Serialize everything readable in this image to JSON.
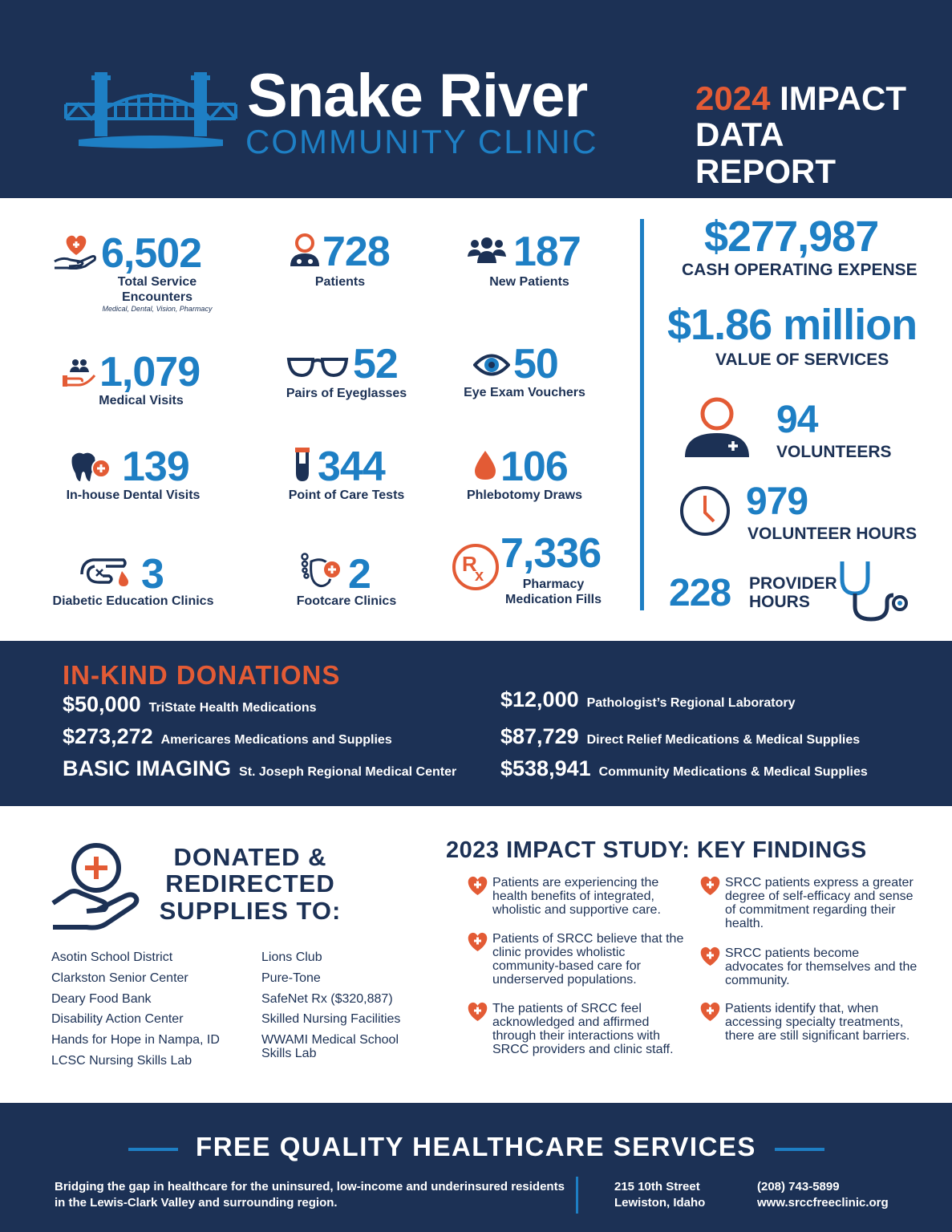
{
  "header": {
    "brand_title": "Snake River",
    "brand_subtitle": "COMMUNITY CLINIC",
    "report_year": "2024",
    "report_line1": " IMPACT",
    "report_line2": "DATA REPORT"
  },
  "stats": {
    "encounters": {
      "value": "6,502",
      "label_line1": "Total Service",
      "label_line2": "Encounters",
      "sub": "Medical, Dental, Vision, Pharmacy"
    },
    "patients": {
      "value": "728",
      "label": "Patients"
    },
    "new_patients": {
      "value": "187",
      "label": "New Patients"
    },
    "medical_visits": {
      "value": "1,079",
      "label": "Medical Visits"
    },
    "eyeglasses": {
      "value": "52",
      "label": "Pairs of Eyeglasses"
    },
    "eye_exams": {
      "value": "50",
      "label": "Eye Exam Vouchers"
    },
    "dental": {
      "value": "139",
      "label": "In-house Dental Visits"
    },
    "poc_tests": {
      "value": "344",
      "label": "Point of Care Tests"
    },
    "phlebotomy": {
      "value": "106",
      "label": "Phlebotomy Draws"
    },
    "diabetic": {
      "value": "3",
      "label": "Diabetic Education Clinics"
    },
    "footcare": {
      "value": "2",
      "label": "Footcare Clinics"
    },
    "pharmacy": {
      "value": "7,336",
      "label_line1": "Pharmacy",
      "label_line2": "Medication Fills"
    }
  },
  "right_stats": {
    "cash_expense": {
      "value": "$277,987",
      "label": "CASH OPERATING EXPENSE"
    },
    "services_value": {
      "value": "$1.86 million",
      "label": "VALUE OF SERVICES"
    },
    "volunteers": {
      "value": "94",
      "label": "VOLUNTEERS"
    },
    "volunteer_hours": {
      "value": "979",
      "label": "VOLUNTEER HOURS"
    },
    "provider_hours": {
      "value": "228",
      "label_line1": "PROVIDER",
      "label_line2": "HOURS"
    }
  },
  "inkind": {
    "title": "IN-KIND DONATIONS",
    "items": [
      {
        "amount": "$50,000",
        "source": "TriState Health Medications"
      },
      {
        "amount": "$273,272",
        "source": "Americares Medications and Supplies"
      },
      {
        "amount": "BASIC IMAGING",
        "source": "St. Joseph Regional Medical Center"
      },
      {
        "amount": "$12,000",
        "source": "Pathologist’s Regional Laboratory"
      },
      {
        "amount": "$87,729",
        "source": "Direct Relief Medications & Medical Supplies"
      },
      {
        "amount": "$538,941",
        "source": "Community Medications & Medical Supplies"
      }
    ]
  },
  "supplies": {
    "title_line1": "DONATED &",
    "title_line2": "REDIRECTED",
    "title_line3": "SUPPLIES TO:",
    "col1": [
      "Asotin School District",
      "Clarkston Senior Center",
      "Deary Food Bank",
      "Disability Action Center",
      "Hands for Hope in Nampa, ID",
      "LCSC Nursing Skills Lab"
    ],
    "col2": [
      "Lions Club",
      "Pure-Tone",
      "SafeNet Rx ($320,887)",
      "Skilled Nursing Facilities",
      "WWAMI Medical School Skills Lab"
    ]
  },
  "findings": {
    "title": "2023 IMPACT STUDY: KEY FINDINGS",
    "items": [
      "Patients are experiencing the health benefits of integrated, wholistic and supportive care.",
      "Patients of SRCC believe that the clinic provides wholistic community-based care for underserved populations.",
      "The patients of SRCC feel acknowledged and affirmed through their interactions with SRCC providers and clinic staff.",
      "SRCC patients express a greater degree of self-efficacy and sense of commitment regarding their health.",
      "SRCC patients become advocates for themselves and the community.",
      "Patients identify that, when accessing specialty treatments, there are still significant barriers."
    ]
  },
  "footer": {
    "title": "FREE QUALITY HEALTHCARE SERVICES",
    "desc": "Bridging the gap in healthcare for the uninsured, low-income and underinsured residents in the Lewis-Clark Valley and surrounding region.",
    "address_line1": "215 10th Street",
    "address_line2": "Lewiston, Idaho",
    "phone": "(208) 743-5899",
    "website": "www.srccfreeclinic.org"
  },
  "colors": {
    "navy": "#1c3155",
    "blue": "#1e7fc4",
    "orange": "#e35b35"
  }
}
